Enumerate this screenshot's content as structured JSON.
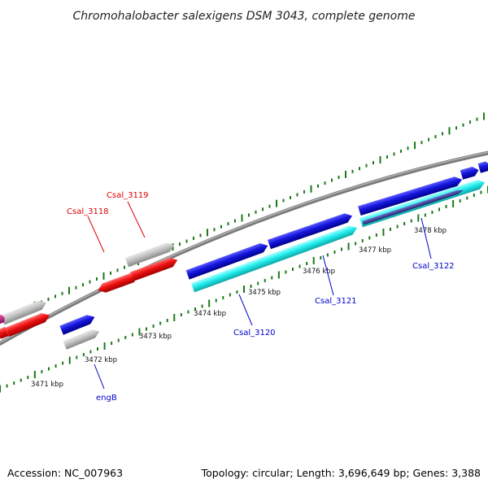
{
  "title": "Chromohalobacter salexigens DSM 3043, complete genome",
  "footer": {
    "accession": "Accession: NC_007963",
    "summary": "Topology: circular; Length: 3,696,649 bp; Genes: 3,388"
  },
  "colors": {
    "backbone": "#8c8c8c",
    "tick": "#1a7a1a",
    "red_gene": "#ee1111",
    "gray_gene": "#c4c4c4",
    "blue_gene": "#1515dd",
    "cyan_gene": "#22eeee",
    "magenta_gene": "#cc1188",
    "darkblue_gene": "#3a3aa8",
    "red_label": "#dd0000",
    "blue_label": "#0000cc"
  },
  "scale": {
    "unit": "kbp",
    "ticks": [
      {
        "label": "3471 kbp"
      },
      {
        "label": "3472 kbp"
      },
      {
        "label": "3473 kbp"
      },
      {
        "label": "3474 kbp"
      },
      {
        "label": "3475 kbp"
      },
      {
        "label": "3476 kbp"
      },
      {
        "label": "3477 kbp"
      },
      {
        "label": "3478 kbp"
      }
    ]
  },
  "gene_labels": [
    {
      "name": "Csal_3119",
      "color": "red"
    },
    {
      "name": "Csal_3118",
      "color": "red"
    },
    {
      "name": "Csal_3122",
      "color": "blue"
    },
    {
      "name": "Csal_3121",
      "color": "blue"
    },
    {
      "name": "Csal_3120",
      "color": "blue"
    },
    {
      "name": "engB",
      "color": "blue"
    }
  ]
}
